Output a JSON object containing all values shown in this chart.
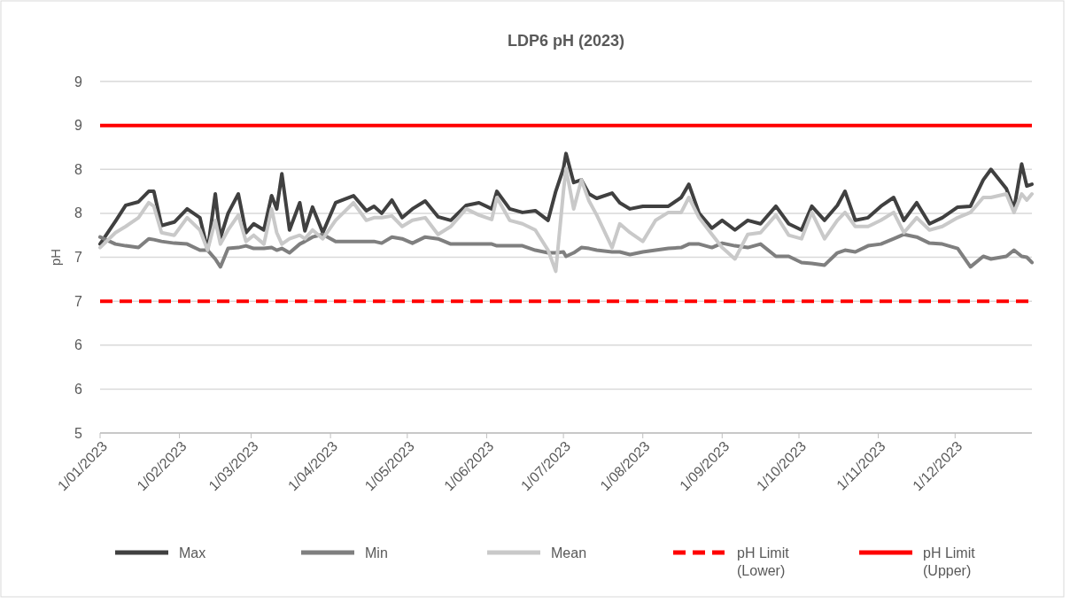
{
  "chart_data": {
    "type": "line",
    "title": "LDP6 pH (2023)",
    "ylabel": "pH",
    "x": [
      "2023-01-01",
      "2023-01-07",
      "2023-01-11",
      "2023-01-16",
      "2023-01-20",
      "2023-01-22",
      "2023-01-25",
      "2023-01-30",
      "2023-02-04",
      "2023-02-09",
      "2023-02-12",
      "2023-02-15",
      "2023-02-17",
      "2023-02-20",
      "2023-02-24",
      "2023-02-27",
      "2023-03-02",
      "2023-03-06",
      "2023-03-09",
      "2023-03-11",
      "2023-03-13",
      "2023-03-16",
      "2023-03-20",
      "2023-03-22",
      "2023-03-25",
      "2023-03-29",
      "2023-04-03",
      "2023-04-10",
      "2023-04-15",
      "2023-04-18",
      "2023-04-21",
      "2023-04-25",
      "2023-04-29",
      "2023-05-03",
      "2023-05-08",
      "2023-05-13",
      "2023-05-18",
      "2023-05-24",
      "2023-05-29",
      "2023-06-03",
      "2023-06-05",
      "2023-06-10",
      "2023-06-15",
      "2023-06-20",
      "2023-06-25",
      "2023-06-28",
      "2023-07-01",
      "2023-07-02",
      "2023-07-05",
      "2023-07-08",
      "2023-07-11",
      "2023-07-14",
      "2023-07-20",
      "2023-07-23",
      "2023-07-27",
      "2023-08-01",
      "2023-08-06",
      "2023-08-11",
      "2023-08-16",
      "2023-08-19",
      "2023-08-23",
      "2023-08-28",
      "2023-09-01",
      "2023-09-06",
      "2023-09-11",
      "2023-09-16",
      "2023-09-22",
      "2023-09-27",
      "2023-10-02",
      "2023-10-06",
      "2023-10-11",
      "2023-10-16",
      "2023-10-19",
      "2023-10-23",
      "2023-10-28",
      "2023-11-02",
      "2023-11-07",
      "2023-11-11",
      "2023-11-16",
      "2023-11-21",
      "2023-11-26",
      "2023-12-02",
      "2023-12-07",
      "2023-12-12",
      "2023-12-15",
      "2023-12-21",
      "2023-12-24",
      "2023-12-27",
      "2023-12-29",
      "2023-12-31"
    ],
    "series": [
      {
        "name": "Max",
        "color": "#404040",
        "values": [
          7.15,
          7.41,
          7.59,
          7.63,
          7.75,
          7.75,
          7.36,
          7.4,
          7.55,
          7.45,
          7.08,
          7.72,
          7.22,
          7.5,
          7.72,
          7.28,
          7.38,
          7.31,
          7.7,
          7.55,
          7.95,
          7.31,
          7.62,
          7.3,
          7.57,
          7.28,
          7.62,
          7.7,
          7.53,
          7.58,
          7.5,
          7.65,
          7.45,
          7.55,
          7.64,
          7.46,
          7.42,
          7.59,
          7.62,
          7.55,
          7.75,
          7.55,
          7.51,
          7.53,
          7.42,
          7.75,
          8.01,
          8.18,
          7.85,
          7.88,
          7.72,
          7.67,
          7.73,
          7.62,
          7.55,
          7.58,
          7.58,
          7.58,
          7.68,
          7.83,
          7.5,
          7.33,
          7.42,
          7.31,
          7.42,
          7.38,
          7.58,
          7.38,
          7.31,
          7.58,
          7.42,
          7.59,
          7.75,
          7.42,
          7.45,
          7.58,
          7.68,
          7.42,
          7.62,
          7.38,
          7.45,
          7.57,
          7.58,
          7.88,
          8.0,
          7.78,
          7.55,
          8.06,
          7.81,
          7.83
        ]
      },
      {
        "name": "Min",
        "color": "#7f7f7f",
        "values": [
          7.23,
          7.15,
          7.13,
          7.11,
          7.21,
          7.2,
          7.18,
          7.16,
          7.15,
          7.08,
          7.08,
          6.98,
          6.89,
          7.1,
          7.11,
          7.13,
          7.1,
          7.1,
          7.11,
          7.08,
          7.1,
          7.05,
          7.15,
          7.18,
          7.23,
          7.26,
          7.18,
          7.18,
          7.18,
          7.18,
          7.16,
          7.23,
          7.21,
          7.16,
          7.23,
          7.21,
          7.15,
          7.15,
          7.15,
          7.15,
          7.13,
          7.13,
          7.13,
          7.08,
          7.05,
          7.05,
          7.06,
          7.01,
          7.05,
          7.11,
          7.1,
          7.08,
          7.06,
          7.06,
          7.03,
          7.06,
          7.08,
          7.1,
          7.11,
          7.15,
          7.15,
          7.11,
          7.16,
          7.13,
          7.11,
          7.15,
          7.01,
          7.01,
          6.94,
          6.93,
          6.91,
          7.05,
          7.08,
          7.06,
          7.13,
          7.15,
          7.21,
          7.26,
          7.23,
          7.16,
          7.15,
          7.1,
          6.89,
          7.01,
          6.98,
          7.01,
          7.08,
          7.01,
          7.0,
          6.94
        ]
      },
      {
        "name": "Mean",
        "color": "#c9c9c9",
        "values": [
          7.11,
          7.28,
          7.35,
          7.45,
          7.62,
          7.58,
          7.28,
          7.25,
          7.45,
          7.31,
          7.08,
          7.42,
          7.15,
          7.31,
          7.48,
          7.18,
          7.25,
          7.15,
          7.55,
          7.28,
          7.15,
          7.21,
          7.25,
          7.21,
          7.31,
          7.21,
          7.42,
          7.62,
          7.42,
          7.45,
          7.45,
          7.47,
          7.35,
          7.42,
          7.45,
          7.26,
          7.35,
          7.55,
          7.48,
          7.43,
          7.68,
          7.42,
          7.38,
          7.31,
          7.08,
          6.84,
          7.75,
          8.01,
          7.55,
          7.88,
          7.64,
          7.48,
          7.11,
          7.38,
          7.28,
          7.18,
          7.42,
          7.51,
          7.51,
          7.68,
          7.45,
          7.26,
          7.11,
          6.98,
          7.26,
          7.28,
          7.48,
          7.25,
          7.21,
          7.51,
          7.21,
          7.42,
          7.51,
          7.35,
          7.35,
          7.42,
          7.51,
          7.28,
          7.45,
          7.31,
          7.35,
          7.45,
          7.51,
          7.68,
          7.68,
          7.72,
          7.51,
          7.72,
          7.65,
          7.72
        ]
      }
    ],
    "ref_lines": [
      {
        "axis": "y",
        "value": 6.5,
        "label": "pH Limit (Lower)",
        "color": "#ff0000",
        "line_style": "dashed"
      },
      {
        "axis": "y",
        "value": 8.5,
        "label": "pH Limit (Upper)",
        "color": "#ff0000",
        "line_style": "solid"
      }
    ],
    "xlim": [
      "2023-01-01",
      "2023-12-31"
    ],
    "xticks": [
      {
        "value": "2023-01-01",
        "label": "1/01/2023"
      },
      {
        "value": "2023-02-01",
        "label": "1/02/2023"
      },
      {
        "value": "2023-03-01",
        "label": "1/03/2023"
      },
      {
        "value": "2023-04-01",
        "label": "1/04/2023"
      },
      {
        "value": "2023-05-01",
        "label": "1/05/2023"
      },
      {
        "value": "2023-06-01",
        "label": "1/06/2023"
      },
      {
        "value": "2023-07-01",
        "label": "1/07/2023"
      },
      {
        "value": "2023-08-01",
        "label": "1/08/2023"
      },
      {
        "value": "2023-09-01",
        "label": "1/09/2023"
      },
      {
        "value": "2023-10-01",
        "label": "1/10/2023"
      },
      {
        "value": "2023-11-01",
        "label": "1/11/2023"
      },
      {
        "value": "2023-12-01",
        "label": "1/12/2023"
      }
    ],
    "ylim": [
      5,
      9
    ],
    "yticks": [
      5,
      {
        "value": 5.5,
        "label": "6"
      },
      6,
      {
        "value": 6.5,
        "label": "7"
      },
      7,
      {
        "value": 7.5,
        "label": "8"
      },
      8,
      {
        "value": 8.5,
        "label": "9"
      },
      9
    ],
    "grid": "y",
    "legend": "bottom",
    "marker": "none",
    "line_style": "solid"
  }
}
